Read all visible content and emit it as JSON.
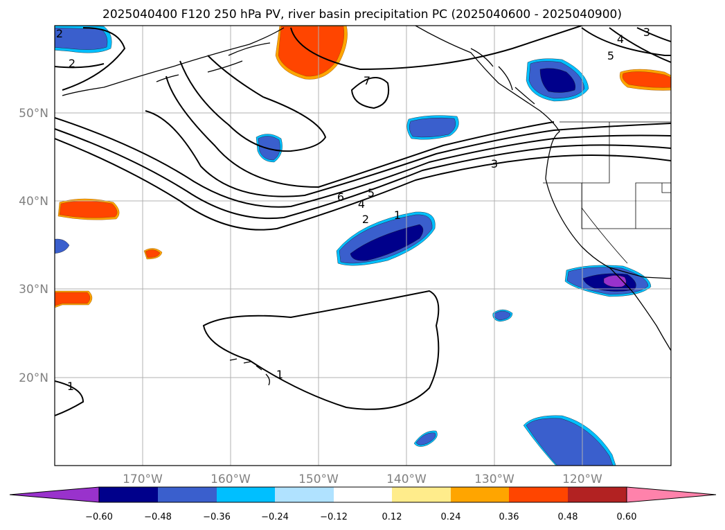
{
  "title": "2025040400 F120 250 hPa PV, river basin precipitation PC (2025040600 - 2025040900)",
  "map": {
    "lon_labels": [
      "170°W",
      "160°W",
      "150°W",
      "140°W",
      "130°W",
      "120°W"
    ],
    "lat_labels": [
      "50°N",
      "40°N",
      "30°N",
      "20°N"
    ]
  },
  "pv_contour_labels": [
    "1",
    "2",
    "3",
    "4",
    "5",
    "6",
    "7",
    "1",
    "2",
    "4",
    "5",
    "1",
    "2",
    "3",
    "4",
    "5"
  ],
  "colorbar": {
    "tick_labels": [
      "−0.60",
      "−0.48",
      "−0.36",
      "−0.24",
      "−0.12",
      "0.12",
      "0.24",
      "0.36",
      "0.48",
      "0.60"
    ],
    "colors": [
      "#9932cc",
      "#00008b",
      "#3a5fcd",
      "#00bfff",
      "#b0e2ff",
      "#ffffff",
      "#ffec8b",
      "#ffa500",
      "#ff4500",
      "#b22222",
      "#ff82ab"
    ]
  },
  "shading_colors": {
    "neg_strong": "#00008b",
    "neg_mid": "#3a5fcd",
    "neg_edge": "#00bfff",
    "neg_extreme": "#9932cc",
    "pos_mid": "#ff4500",
    "pos_edge": "#ffa500"
  }
}
